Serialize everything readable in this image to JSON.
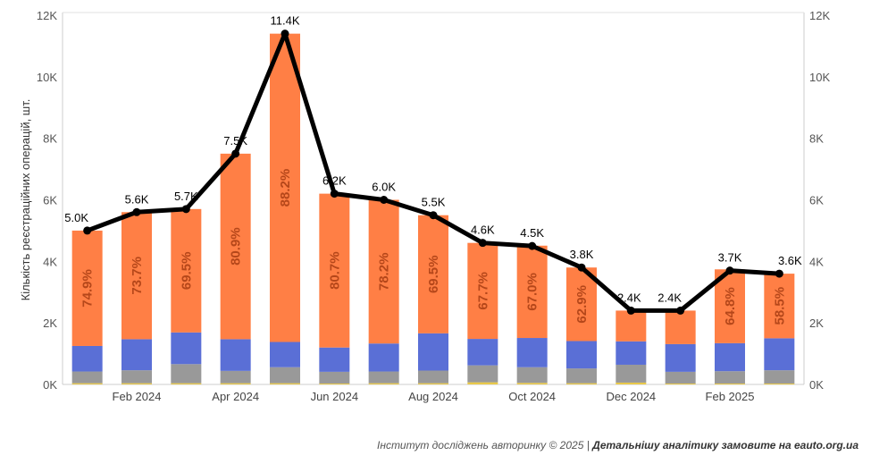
{
  "chart_data": {
    "type": "bar",
    "ylabel": "Кількість реєстраційних операцій, шт.",
    "ylim": [
      0,
      12000
    ],
    "y_ticks": [
      "0K",
      "2K",
      "4K",
      "6K",
      "8K",
      "10K",
      "12K"
    ],
    "x_tick_labels": [
      "Feb 2024",
      "Apr 2024",
      "Jun 2024",
      "Aug 2024",
      "Oct 2024",
      "Dec 2024",
      "Feb 2025"
    ],
    "categories": [
      "Jan 2024",
      "Feb 2024",
      "Mar 2024",
      "Apr 2024",
      "May 2024",
      "Jun 2024",
      "Jul 2024",
      "Aug 2024",
      "Sep 2024",
      "Oct 2024",
      "Nov 2024",
      "Dec 2024",
      "Jan 2025",
      "Feb 2025",
      "Mar 2025"
    ],
    "stack_colors": [
      "#e8c84a",
      "#999999",
      "#5a6fd6",
      "#ff7f45"
    ],
    "series": [
      {
        "values": [
          40,
          40,
          40,
          40,
          40,
          30,
          40,
          40,
          70,
          50,
          40,
          60,
          30,
          30,
          30
        ]
      },
      {
        "values": [
          380,
          420,
          620,
          400,
          520,
          380,
          380,
          410,
          550,
          510,
          480,
          580,
          380,
          400,
          430
        ]
      },
      {
        "values": [
          830,
          1010,
          1030,
          1030,
          820,
          790,
          910,
          1210,
          860,
          950,
          890,
          760,
          900,
          910,
          1040
        ]
      },
      {
        "values": [
          3750,
          4130,
          4010,
          6030,
          10020,
          5000,
          4670,
          3840,
          3120,
          3000,
          2390,
          1000,
          1090,
          2400,
          2100
        ]
      }
    ],
    "bar_labels": [
      "74.9%",
      "73.7%",
      "69.5%",
      "80.9%",
      "88.2%",
      "80.7%",
      "78.2%",
      "69.5%",
      "67.7%",
      "67.0%",
      "62.9%",
      "",
      "",
      "64.8%",
      "58.5%"
    ],
    "line": {
      "values": [
        5000,
        5600,
        5700,
        7500,
        11400,
        6200,
        6000,
        5500,
        4600,
        4500,
        3800,
        2400,
        2400,
        3700,
        3600
      ],
      "labels": [
        "5.0K",
        "5.6K",
        "5.7K",
        "7.5K",
        "11.4K",
        "6.2K",
        "6.0K",
        "5.5K",
        "4.6K",
        "4.5K",
        "3.8K",
        "2.4K",
        "2.4K",
        "3.7K",
        "3.6K"
      ],
      "color": "#000000"
    },
    "grid": false,
    "legend": "none"
  },
  "footer": {
    "source": "Інститут досліджень авторинку © 2025 | ",
    "cta": "Детальнішу аналітику замовите на eauto.org.ua"
  }
}
